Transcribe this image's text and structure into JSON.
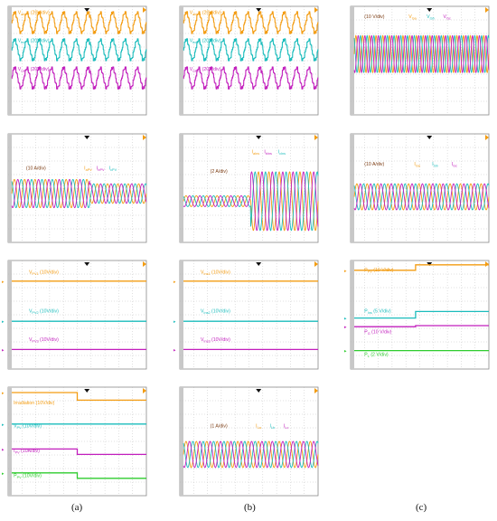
{
  "colors": {
    "orange": "#f39c12",
    "cyan": "#1abcbc",
    "magenta": "#c21fbd",
    "green": "#2ecc2e",
    "grid": "#b4b4b4",
    "frame": "#8a8a8a",
    "marker": "#111111"
  },
  "columns": [
    "(a)",
    "(b)",
    "(c)"
  ],
  "chart_data": [
    {
      "id": "a1",
      "type": "line",
      "annotations": [
        {
          "text": "V_abPV (20V/div)",
          "color": "orange"
        },
        {
          "text": "V_bcPV (20V/div)",
          "color": "cyan"
        },
        {
          "text": "V_caPV (20V/div)",
          "color": "magenta"
        }
      ],
      "series": [
        {
          "kind": "multilevel",
          "color": "orange",
          "level": 0.15,
          "amp": 0.09
        },
        {
          "kind": "multilevel",
          "color": "cyan",
          "level": 0.4,
          "amp": 0.09
        },
        {
          "kind": "multilevel",
          "color": "magenta",
          "level": 0.66,
          "amp": 0.09
        }
      ]
    },
    {
      "id": "b1",
      "type": "line",
      "annotations": [
        {
          "text": "V_abIns (20V/div)",
          "color": "orange"
        },
        {
          "text": "V_bcIns (20V/div)",
          "color": "cyan"
        },
        {
          "text": "V_caIns (20V/div)",
          "color": "magenta"
        }
      ],
      "series": [
        {
          "kind": "multilevel",
          "color": "orange",
          "level": 0.15,
          "amp": 0.09
        },
        {
          "kind": "multilevel",
          "color": "cyan",
          "level": 0.4,
          "amp": 0.09
        },
        {
          "kind": "multilevel",
          "color": "magenta",
          "level": 0.66,
          "amp": 0.09
        }
      ]
    },
    {
      "id": "c1",
      "type": "line",
      "annotations": [
        {
          "text": "(10 V/div)",
          "color": "dark"
        },
        {
          "text": "V_Ga",
          "color": "orange"
        },
        {
          "text": "V_Gb",
          "color": "cyan"
        },
        {
          "text": "V_Gc",
          "color": "magenta"
        }
      ],
      "series": [
        {
          "kind": "threephase",
          "level": 0.44,
          "amp": 0.17,
          "cycles": 20
        }
      ]
    },
    {
      "id": "a2",
      "type": "line",
      "annotations": [
        {
          "text": "(10 A/div)",
          "color": "dark"
        },
        {
          "text": "I_aPV",
          "color": "orange"
        },
        {
          "text": "I_bPV",
          "color": "magenta"
        },
        {
          "text": "I_cPV",
          "color": "cyan"
        }
      ],
      "series": [
        {
          "kind": "threephase",
          "level": 0.55,
          "amp": 0.13,
          "amp2": 0.09,
          "step_at": 0.58,
          "cycles": 13
        }
      ]
    },
    {
      "id": "b2",
      "type": "line",
      "annotations": [
        {
          "text": "(2 A/div)",
          "color": "dark"
        },
        {
          "text": "I_aIns",
          "color": "orange"
        },
        {
          "text": "I_bIns",
          "color": "magenta"
        },
        {
          "text": "I_cIns",
          "color": "cyan"
        }
      ],
      "series": [
        {
          "kind": "threephase",
          "level": 0.62,
          "amp": 0.05,
          "amp2": 0.27,
          "step_at": 0.5,
          "cycles": 13
        }
      ]
    },
    {
      "id": "c2",
      "type": "line",
      "annotations": [
        {
          "text": "(10 A/div)",
          "color": "dark"
        },
        {
          "text": "I_Ga",
          "color": "orange"
        },
        {
          "text": "I_Gb",
          "color": "cyan"
        },
        {
          "text": "I_Gc",
          "color": "magenta"
        }
      ],
      "series": [
        {
          "kind": "threephase",
          "level": 0.58,
          "amp": 0.12,
          "cycles": 13
        }
      ]
    },
    {
      "id": "a3",
      "type": "line",
      "annotations": [
        {
          "text": "V_PV1 (10V/div)",
          "color": "orange"
        },
        {
          "text": "V_PV2 (10V/div)",
          "color": "cyan"
        },
        {
          "text": "V_PV3 (10V/div)",
          "color": "magenta"
        }
      ],
      "series": [
        {
          "kind": "flat",
          "color": "orange",
          "level": 0.19
        },
        {
          "kind": "flat",
          "color": "cyan",
          "level": 0.56
        },
        {
          "kind": "flat",
          "color": "magenta",
          "level": 0.82
        }
      ]
    },
    {
      "id": "b3",
      "type": "line",
      "annotations": [
        {
          "text": "V_Ins1 (10V/div)",
          "color": "orange"
        },
        {
          "text": "V_Ins2 (10V/div)",
          "color": "cyan"
        },
        {
          "text": "V_Ins3 (10V/div)",
          "color": "magenta"
        }
      ],
      "series": [
        {
          "kind": "flat",
          "color": "orange",
          "level": 0.19
        },
        {
          "kind": "flat",
          "color": "cyan",
          "level": 0.56
        },
        {
          "kind": "flat",
          "color": "magenta",
          "level": 0.82
        }
      ]
    },
    {
      "id": "c3",
      "type": "line",
      "annotations": [
        {
          "text": "P_PV (10 V/div)",
          "color": "orange"
        },
        {
          "text": "P_Ins (5 V/div)",
          "color": "cyan"
        },
        {
          "text": "P_G (10 V/div)",
          "color": "magenta"
        },
        {
          "text": "P_L (2 V/div)",
          "color": "green"
        }
      ],
      "series": [
        {
          "kind": "flat",
          "color": "orange",
          "level": 0.09,
          "level2": 0.04,
          "step_at": 0.47
        },
        {
          "kind": "flat",
          "color": "cyan",
          "level": 0.53,
          "level2": 0.47,
          "step_at": 0.47
        },
        {
          "kind": "flat",
          "color": "magenta",
          "level": 0.61,
          "level2": 0.6,
          "step_at": 0.47
        },
        {
          "kind": "flat",
          "color": "green",
          "level": 0.83
        }
      ]
    },
    {
      "id": "a4",
      "type": "line",
      "annotations": [
        {
          "text": "Irradiation (10V/div)",
          "color": "orange"
        },
        {
          "text": "V_PV (10V/div)",
          "color": "cyan"
        },
        {
          "text": "I_PV (10A/div)",
          "color": "magenta"
        },
        {
          "text": "P_PV (10V/div)",
          "color": "green"
        }
      ],
      "series": [
        {
          "kind": "flat",
          "color": "orange",
          "level": 0.05,
          "level2": 0.12,
          "step_at": 0.5
        },
        {
          "kind": "flat",
          "color": "cyan",
          "level": 0.34
        },
        {
          "kind": "flat",
          "color": "magenta",
          "level": 0.57,
          "level2": 0.62,
          "step_at": 0.5
        },
        {
          "kind": "flat",
          "color": "green",
          "level": 0.79,
          "level2": 0.84,
          "step_at": 0.5
        }
      ]
    },
    {
      "id": "b4",
      "type": "line",
      "annotations": [
        {
          "text": "(1 A/div)",
          "color": "dark"
        },
        {
          "text": "I_La",
          "color": "orange"
        },
        {
          "text": "I_Lb",
          "color": "cyan"
        },
        {
          "text": "I_Lc",
          "color": "magenta"
        }
      ],
      "series": [
        {
          "kind": "threephase",
          "level": 0.62,
          "amp": 0.12,
          "cycles": 13
        }
      ]
    }
  ]
}
